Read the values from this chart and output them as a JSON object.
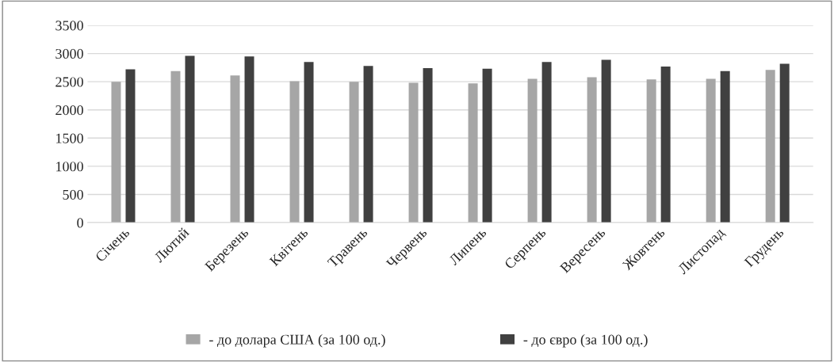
{
  "chart_data": {
    "type": "bar",
    "categories": [
      "Січень",
      "Лютий",
      "Березень",
      "Квітень",
      "Травень",
      "Червень",
      "Липень",
      "Серпень",
      "Вересень",
      "Жовтень",
      "Листопад",
      "Грудень"
    ],
    "series": [
      {
        "name": "- до долара США (за 100 од.)",
        "color": "#a6a6a6",
        "values": [
          2500,
          2690,
          2610,
          2510,
          2500,
          2480,
          2470,
          2550,
          2580,
          2540,
          2550,
          2710
        ]
      },
      {
        "name": "- до євро (за 100 од.)",
        "color": "#404040",
        "values": [
          2720,
          2960,
          2950,
          2850,
          2780,
          2740,
          2730,
          2850,
          2890,
          2770,
          2690,
          2820
        ]
      }
    ],
    "ylim": [
      0,
      3500
    ],
    "yticks": [
      0,
      500,
      1000,
      1500,
      2000,
      2500,
      3000,
      3500
    ],
    "grid": "y",
    "legend": "bottom"
  }
}
